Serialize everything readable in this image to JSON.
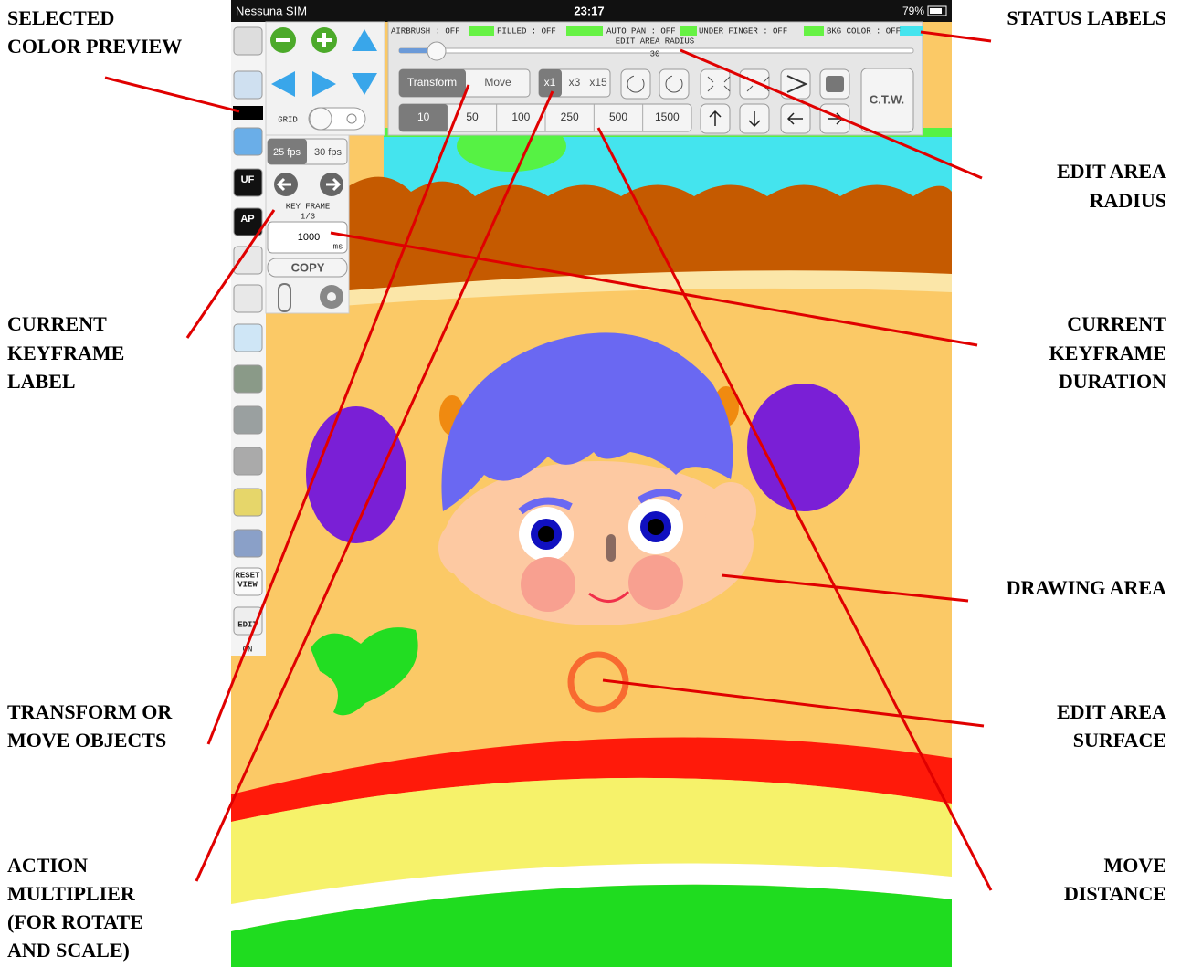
{
  "annotations_left": [
    {
      "lines": [
        "SELECTED",
        "COLOR PREVIEW"
      ]
    },
    {
      "lines": [
        "CURRENT",
        "KEYFRAME",
        "LABEL"
      ]
    },
    {
      "lines": [
        "TRANSFORM OR",
        "MOVE OBJECTS"
      ]
    },
    {
      "lines": [
        "ACTION",
        "MULTIPLIER",
        "(FOR ROTATE",
        "AND SCALE)"
      ]
    }
  ],
  "annotations_right": [
    {
      "lines": [
        "STATUS LABELS"
      ]
    },
    {
      "lines": [
        "EDIT AREA",
        "RADIUS"
      ]
    },
    {
      "lines": [
        "CURRENT",
        "KEYFRAME",
        "DURATION"
      ]
    },
    {
      "lines": [
        "DRAWING AREA"
      ]
    },
    {
      "lines": [
        "EDIT AREA",
        "SURFACE"
      ]
    },
    {
      "lines": [
        "MOVE",
        "DISTANCE"
      ]
    }
  ],
  "status_bar": {
    "carrier": "Nessuna SIM",
    "time": "23:17",
    "battery": "79%"
  },
  "status_labels": [
    "AIRBRUSH : OFF",
    "FILLED : OFF",
    "AUTO PAN : OFF",
    "UNDER FINGER : OFF",
    "BKG COLOR : OFF"
  ],
  "edit_area_radius": {
    "label": "EDIT AREA RADIUS",
    "value": 30
  },
  "mode_buttons": [
    "Transform",
    "Move"
  ],
  "multipliers": [
    "x1",
    "x3",
    "x15"
  ],
  "ctw_button": "C.T.W.",
  "move_distances": [
    10,
    50,
    100,
    250,
    500,
    1500
  ],
  "toolbar": {
    "grid": "GRID",
    "fps": [
      "25 fps",
      "30 fps"
    ],
    "keyframe_title": "KEY FRAME",
    "keyframe_label": "1/3",
    "duration": 1000,
    "duration_unit": "ms",
    "copy": "COPY",
    "uf": "UF",
    "ap": "AP",
    "reset_view": [
      "RESET",
      "VIEW"
    ],
    "edit": "EDIT",
    "edit_state": "ON"
  }
}
